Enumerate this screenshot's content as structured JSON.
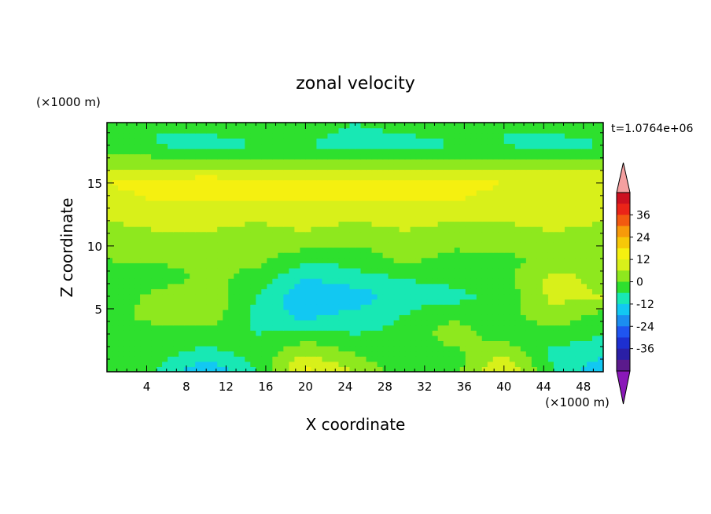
{
  "chart_data": {
    "type": "heatmap",
    "title": "zonal velocity",
    "xlabel": "X coordinate",
    "ylabel": "Z coordinate",
    "x_unit": "(×1000 m)",
    "y_unit": "(×1000 m)",
    "time_label": "t=1.0764e+06",
    "xlim": [
      0,
      50
    ],
    "ylim": [
      0,
      19.8
    ],
    "x_ticks": [
      4,
      8,
      12,
      16,
      20,
      24,
      28,
      32,
      36,
      40,
      44,
      48
    ],
    "y_ticks": [
      5,
      10,
      15
    ],
    "colorbar": {
      "levels": [
        -42,
        -36,
        -30,
        -24,
        -18,
        -12,
        -6,
        0,
        6,
        12,
        18,
        24,
        30,
        36,
        42
      ],
      "labels": [
        36,
        24,
        12,
        0,
        -12,
        -24,
        -36
      ],
      "colors": [
        "#5b1a8c",
        "#2a1fa6",
        "#1d2fd0",
        "#1f55f0",
        "#1b8ef0",
        "#12c8f2",
        "#18e8b4",
        "#2ee02e",
        "#8ee81e",
        "#d8f01a",
        "#f5f010",
        "#f7c808",
        "#f79a0a",
        "#f25a10",
        "#ea2418",
        "#cc1020"
      ],
      "under_color": "#8a18b8",
      "over_color": "#f4a0a0"
    },
    "grid_x": [
      0,
      5,
      10,
      15,
      20,
      25,
      30,
      35,
      40,
      45,
      50
    ],
    "grid_z": [
      0,
      1.5,
      3,
      4.5,
      6,
      7.5,
      9,
      10.5,
      12,
      13.5,
      15,
      16.5,
      18,
      19.8
    ],
    "values": [
      [
        -2,
        -6,
        -18,
        -6,
        14,
        6,
        -4,
        -2,
        12,
        -6,
        -18
      ],
      [
        -6,
        -4,
        -8,
        -4,
        6,
        0,
        -6,
        -2,
        6,
        -8,
        -10
      ],
      [
        -4,
        -2,
        -2,
        -6,
        -4,
        -6,
        -4,
        4,
        -4,
        -2,
        -6
      ],
      [
        -2,
        2,
        4,
        -8,
        -14,
        -10,
        -6,
        -2,
        -2,
        4,
        -2
      ],
      [
        -4,
        2,
        6,
        -6,
        -18,
        -16,
        -8,
        -8,
        -4,
        8,
        6
      ],
      [
        -2,
        -4,
        2,
        -2,
        -12,
        -8,
        -6,
        -4,
        -2,
        8,
        4
      ],
      [
        0,
        2,
        0,
        2,
        -4,
        -4,
        2,
        -2,
        -2,
        2,
        4
      ],
      [
        2,
        4,
        4,
        4,
        4,
        2,
        4,
        2,
        4,
        4,
        4
      ],
      [
        6,
        8,
        8,
        6,
        8,
        6,
        8,
        6,
        6,
        8,
        6
      ],
      [
        10,
        12,
        12,
        12,
        12,
        12,
        12,
        12,
        10,
        12,
        10
      ],
      [
        12,
        14,
        16,
        14,
        14,
        14,
        14,
        14,
        12,
        12,
        12
      ],
      [
        4,
        4,
        4,
        4,
        4,
        4,
        4,
        4,
        4,
        4,
        4
      ],
      [
        -4,
        -6,
        -8,
        -6,
        -6,
        -8,
        -8,
        -6,
        -6,
        -8,
        -6
      ],
      [
        -4,
        -6,
        -4,
        -4,
        -4,
        -6,
        -4,
        -4,
        -6,
        -4,
        -4
      ]
    ]
  }
}
